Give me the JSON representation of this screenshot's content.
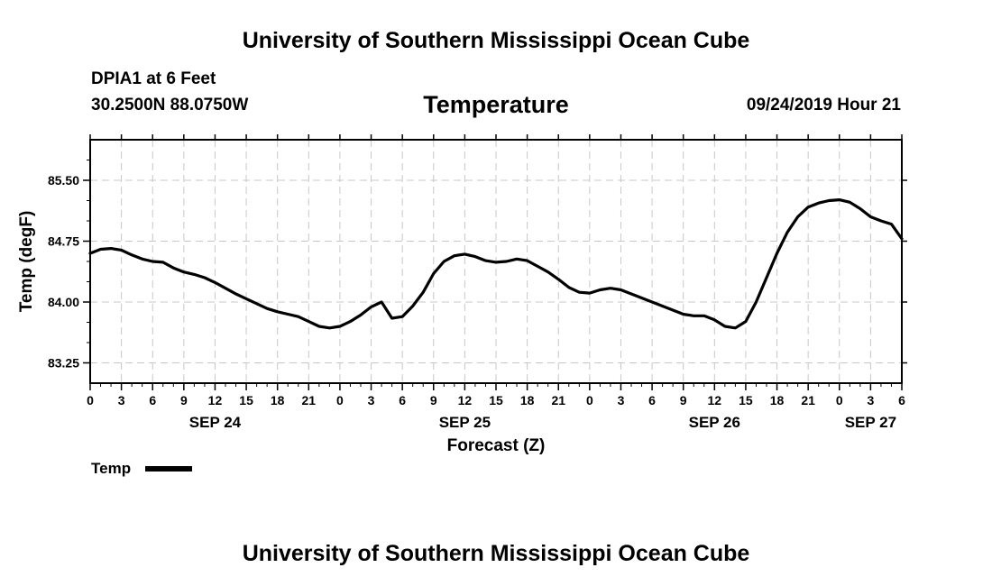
{
  "header": {
    "title_top": "University of Southern Mississippi Ocean Cube",
    "station": "DPIA1 at 6 Feet",
    "coords": "30.2500N 88.0750W",
    "variable_title": "Temperature",
    "init_time": "09/24/2019 Hour 21",
    "title_bottom": "University of Southern Mississippi Ocean Cube"
  },
  "colors": {
    "line": "#000000",
    "grid": "#c8c8c8",
    "background": "#ffffff"
  },
  "chart_data": {
    "type": "line",
    "title": "Temperature",
    "xlabel": "Forecast (Z)",
    "ylabel": "Temp (degF)",
    "ylim": [
      83.0,
      86.0
    ],
    "xlim": [
      0,
      78
    ],
    "grid": true,
    "y_ticks": [
      83.25,
      84.0,
      84.75,
      85.5
    ],
    "y_tick_labels": [
      "83.25",
      "84.00",
      "84.75",
      "85.50"
    ],
    "x_ticks": [
      0,
      3,
      6,
      9,
      12,
      15,
      18,
      21,
      24,
      27,
      30,
      33,
      36,
      39,
      42,
      45,
      48,
      51,
      54,
      57,
      60,
      63,
      66,
      69,
      72,
      75,
      78
    ],
    "x_tick_labels": [
      "0",
      "3",
      "6",
      "9",
      "12",
      "15",
      "18",
      "21",
      "0",
      "3",
      "6",
      "9",
      "12",
      "15",
      "18",
      "21",
      "0",
      "3",
      "6",
      "9",
      "12",
      "15",
      "18",
      "21",
      "0",
      "3",
      "6"
    ],
    "date_labels": [
      {
        "hour": 12,
        "label": "SEP 24"
      },
      {
        "hour": 36,
        "label": "SEP 25"
      },
      {
        "hour": 60,
        "label": "SEP 26"
      },
      {
        "hour": 75,
        "label": "SEP 27"
      }
    ],
    "legend": {
      "label": "Temp",
      "position": "bottom-left"
    },
    "series": [
      {
        "name": "Temp",
        "x": [
          0,
          1,
          2,
          3,
          4,
          5,
          6,
          7,
          8,
          9,
          10,
          11,
          12,
          13,
          14,
          15,
          16,
          17,
          18,
          19,
          20,
          21,
          22,
          23,
          24,
          25,
          26,
          27,
          28,
          29,
          30,
          31,
          32,
          33,
          34,
          35,
          36,
          37,
          38,
          39,
          40,
          41,
          42,
          43,
          44,
          45,
          46,
          47,
          48,
          49,
          50,
          51,
          52,
          53,
          54,
          55,
          56,
          57,
          58,
          59,
          60,
          61,
          62,
          63,
          64,
          65,
          66,
          67,
          68,
          69,
          70,
          71,
          72,
          73,
          74,
          75,
          76,
          77,
          78
        ],
        "values": [
          84.6,
          84.65,
          84.66,
          84.64,
          84.58,
          84.53,
          84.5,
          84.49,
          84.42,
          84.37,
          84.34,
          84.3,
          84.24,
          84.17,
          84.1,
          84.04,
          83.98,
          83.92,
          83.88,
          83.85,
          83.82,
          83.76,
          83.7,
          83.68,
          83.7,
          83.76,
          83.84,
          83.94,
          84.0,
          83.8,
          83.82,
          83.95,
          84.12,
          84.35,
          84.5,
          84.57,
          84.59,
          84.56,
          84.51,
          84.49,
          84.5,
          84.53,
          84.51,
          84.44,
          84.37,
          84.28,
          84.18,
          84.12,
          84.11,
          84.15,
          84.17,
          84.15,
          84.1,
          84.05,
          84.0,
          83.95,
          83.9,
          83.85,
          83.83,
          83.83,
          83.78,
          83.7,
          83.68,
          83.76,
          84.0,
          84.3,
          84.6,
          84.86,
          85.05,
          85.17,
          85.22,
          85.25,
          85.26,
          85.23,
          85.15,
          85.05,
          85.0,
          84.96,
          84.78
        ]
      }
    ]
  }
}
